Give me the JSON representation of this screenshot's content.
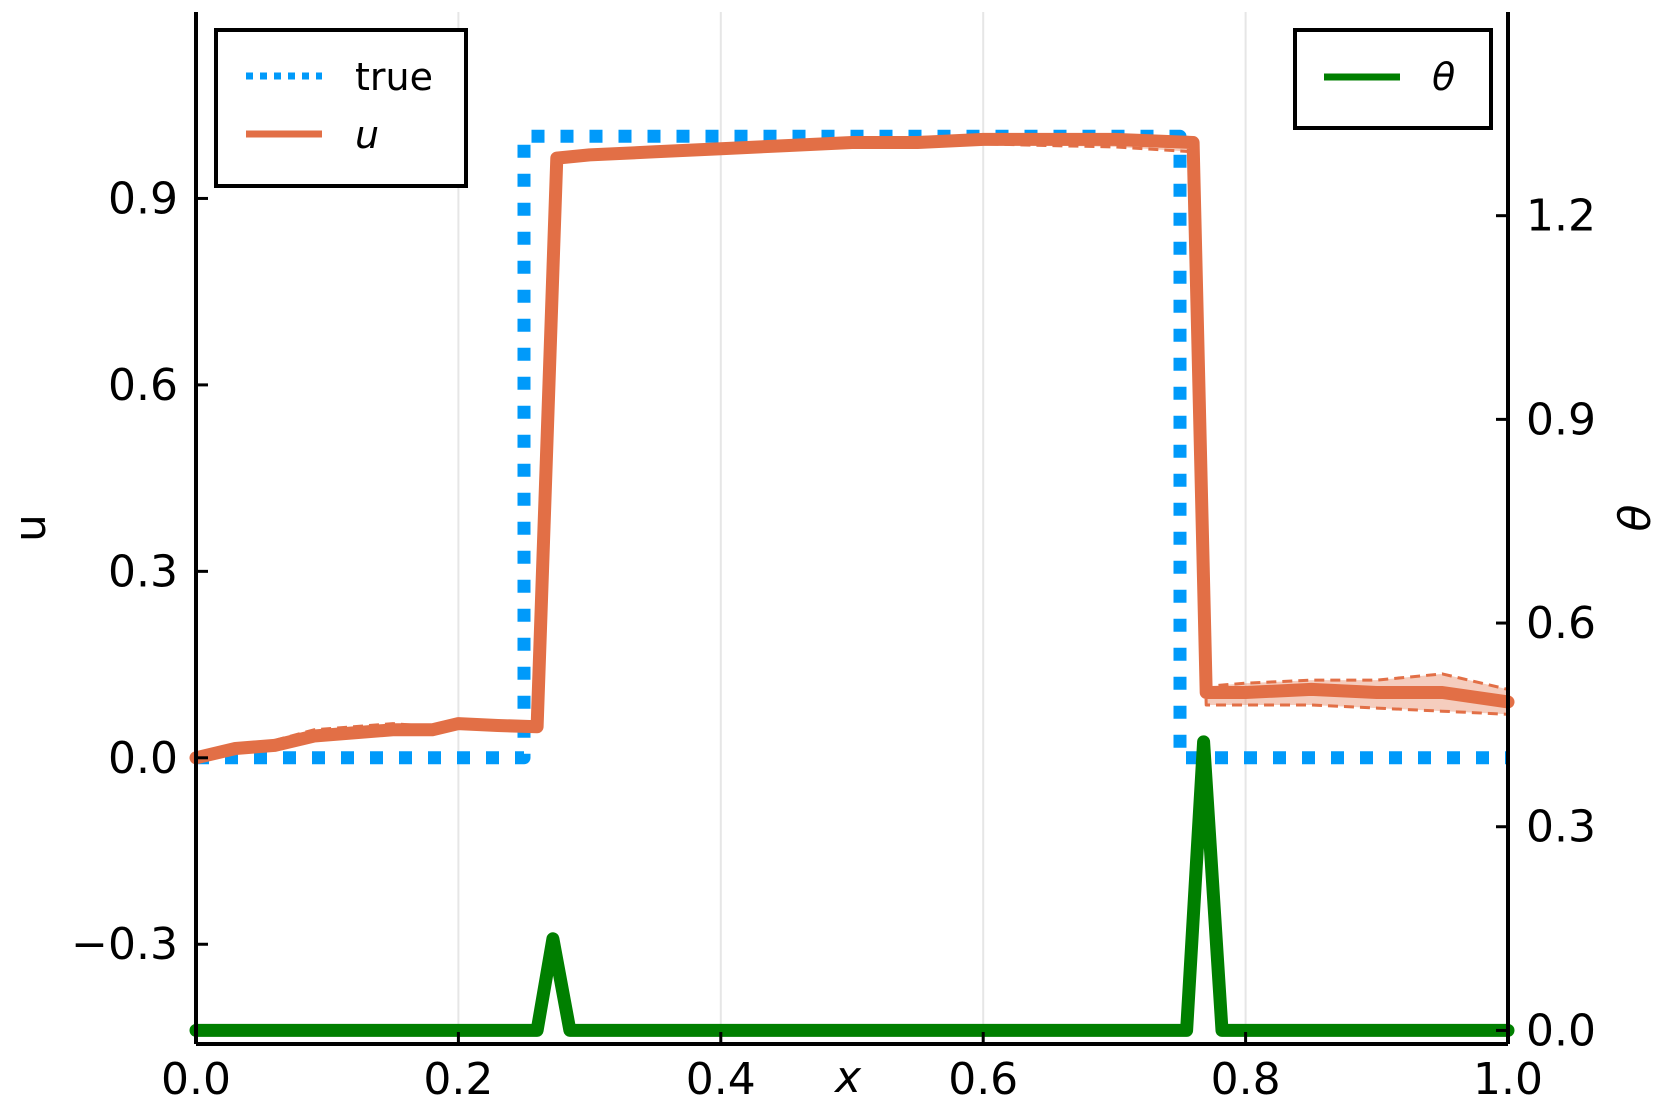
{
  "chart_data": {
    "type": "line",
    "title": "",
    "xlabel": "x",
    "ylabel": "u",
    "y2label": "θ",
    "xlim": [
      0.0,
      1.0
    ],
    "ylim": [
      -0.4605,
      1.2
    ],
    "y2lim": [
      -0.02,
      1.5
    ],
    "xticks": [
      "0.0",
      "0.2",
      "0.4",
      "0.6",
      "0.8",
      "1.0"
    ],
    "xtick_values": [
      0.0,
      0.2,
      0.4,
      0.6,
      0.8,
      1.0
    ],
    "yticks": [
      "−0.3",
      "0.0",
      "0.3",
      "0.6",
      "0.9"
    ],
    "ytick_values": [
      -0.3,
      0.0,
      0.3,
      0.6,
      0.9
    ],
    "y2ticks": [
      "0.0",
      "0.3",
      "0.6",
      "0.9",
      "1.2"
    ],
    "y2tick_values": [
      0.0,
      0.3,
      0.6,
      0.9,
      1.2
    ],
    "grid": "vertical",
    "legend_left": {
      "placement": "top-left",
      "entries": [
        {
          "label": "true",
          "style": "dotted",
          "color": "#009AFA"
        },
        {
          "label": "u",
          "style": "solid",
          "color": "#E26F46",
          "italic": true
        }
      ]
    },
    "legend_right": {
      "placement": "top-right",
      "entries": [
        {
          "label": "θ",
          "style": "solid",
          "color": "#007F00",
          "italic": true
        }
      ]
    },
    "series": [
      {
        "name": "true",
        "axis": "left",
        "color": "#009AFA",
        "style": "dotted",
        "x": [
          0.0,
          0.25,
          0.25,
          0.75,
          0.75,
          1.0
        ],
        "y": [
          0.0,
          0.0,
          1.0,
          1.0,
          0.0,
          0.0
        ]
      },
      {
        "name": "u",
        "axis": "left",
        "color": "#E26F46",
        "style": "solid",
        "x": [
          0.0,
          0.03,
          0.06,
          0.09,
          0.12,
          0.15,
          0.18,
          0.2,
          0.23,
          0.26,
          0.275,
          0.3,
          0.35,
          0.4,
          0.45,
          0.5,
          0.55,
          0.6,
          0.65,
          0.7,
          0.76,
          0.77,
          0.8,
          0.85,
          0.9,
          0.95,
          1.0
        ],
        "y": [
          0.0,
          0.015,
          0.02,
          0.035,
          0.04,
          0.045,
          0.045,
          0.055,
          0.052,
          0.05,
          0.965,
          0.97,
          0.975,
          0.98,
          0.985,
          0.99,
          0.99,
          0.995,
          0.995,
          0.995,
          0.99,
          0.105,
          0.105,
          0.11,
          0.105,
          0.105,
          0.09
        ]
      },
      {
        "name": "u_upper",
        "axis": "left",
        "color": "#E26F46",
        "style": "dashed",
        "x": [
          0.0,
          0.03,
          0.06,
          0.09,
          0.12,
          0.15,
          0.18,
          0.2,
          0.23,
          0.26,
          0.275,
          0.3,
          0.35,
          0.4,
          0.45,
          0.5,
          0.55,
          0.6,
          0.65,
          0.7,
          0.76,
          0.77,
          0.8,
          0.85,
          0.9,
          0.95,
          1.0
        ],
        "y": [
          0.005,
          0.02,
          0.028,
          0.045,
          0.05,
          0.055,
          0.05,
          0.058,
          0.055,
          0.053,
          0.968,
          0.975,
          0.98,
          0.985,
          0.99,
          0.995,
          0.998,
          1.0,
          1.0,
          1.0,
          0.998,
          0.115,
          0.12,
          0.125,
          0.125,
          0.135,
          0.11
        ]
      },
      {
        "name": "u_lower",
        "axis": "left",
        "color": "#E26F46",
        "style": "dashed",
        "x": [
          0.0,
          0.03,
          0.06,
          0.09,
          0.12,
          0.15,
          0.18,
          0.2,
          0.23,
          0.26,
          0.275,
          0.3,
          0.35,
          0.4,
          0.45,
          0.5,
          0.55,
          0.6,
          0.65,
          0.7,
          0.76,
          0.77,
          0.8,
          0.85,
          0.9,
          0.95,
          1.0
        ],
        "y": [
          -0.003,
          0.01,
          0.015,
          0.03,
          0.035,
          0.04,
          0.04,
          0.05,
          0.048,
          0.047,
          0.96,
          0.965,
          0.97,
          0.975,
          0.98,
          0.985,
          0.985,
          0.988,
          0.985,
          0.983,
          0.975,
          0.085,
          0.085,
          0.085,
          0.08,
          0.075,
          0.07
        ]
      },
      {
        "name": "θ",
        "axis": "right",
        "color": "#007F00",
        "style": "solid",
        "x": [
          0.0,
          0.26,
          0.272,
          0.285,
          0.755,
          0.768,
          0.782,
          1.0
        ],
        "y": [
          0.0,
          0.0,
          0.135,
          0.0,
          0.0,
          0.425,
          0.0,
          0.0
        ]
      }
    ]
  }
}
